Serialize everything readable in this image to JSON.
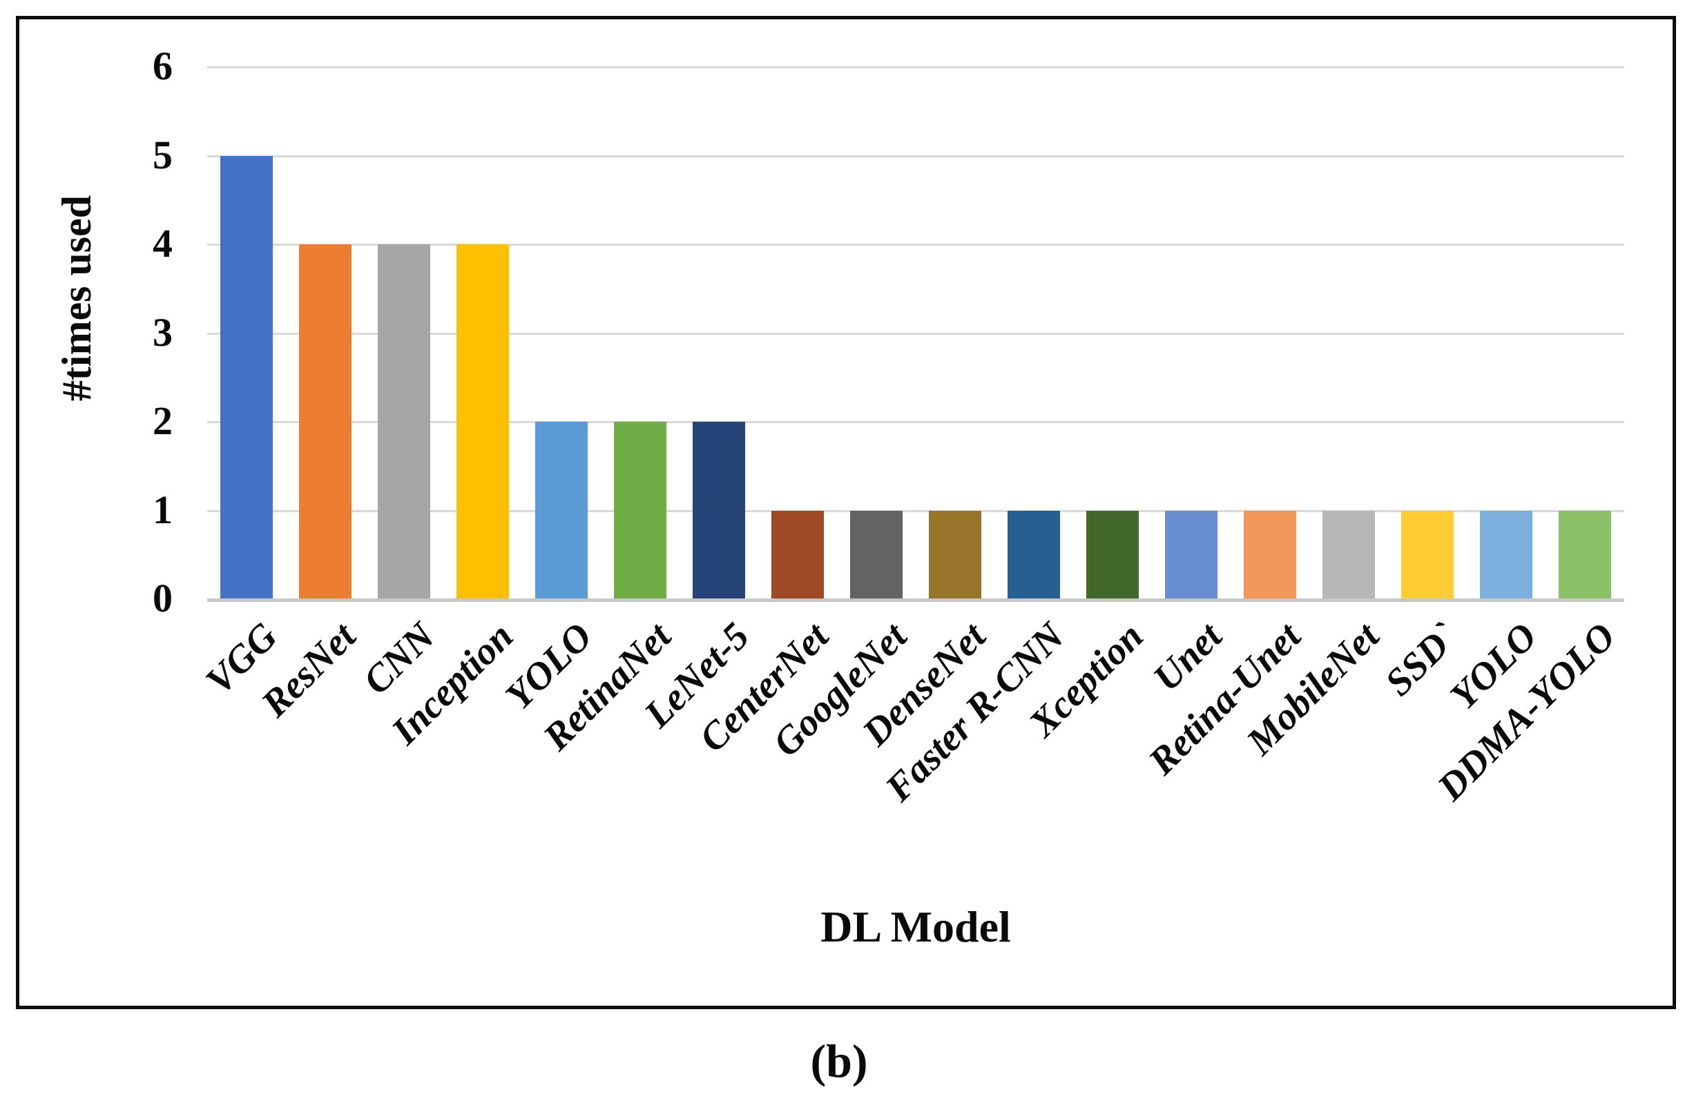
{
  "figure": {
    "caption": "(b)"
  },
  "chart_data": {
    "type": "bar",
    "title": "",
    "xlabel": "DL Model",
    "ylabel": "#times used",
    "ylim": [
      0,
      6
    ],
    "yticks": [
      0,
      1,
      2,
      3,
      4,
      5,
      6
    ],
    "grid": true,
    "legend": "none",
    "categories": [
      "VGG",
      "ResNet",
      "CNN",
      "Inception",
      "YOLO",
      "RetinaNet",
      "LeNet-5",
      "CenterNet",
      "GoogleNet",
      "DenseNet",
      "Faster R-CNN",
      "Xception",
      "Unet",
      "Retina-Unet",
      "MobileNet",
      "SSD`",
      "YOLO",
      "DDMA-YOLO"
    ],
    "values": [
      5,
      4,
      4,
      4,
      2,
      2,
      2,
      1,
      1,
      1,
      1,
      1,
      1,
      1,
      1,
      1,
      1,
      1
    ],
    "bar_colors": [
      "#4472C4",
      "#ED7D31",
      "#A5A5A5",
      "#FFC000",
      "#5B9BD5",
      "#70AD47",
      "#264478",
      "#9E4A26",
      "#636363",
      "#97742A",
      "#255E91",
      "#43682B",
      "#698ED0",
      "#F1975A",
      "#B7B7B7",
      "#FFCD33",
      "#7CAFDD",
      "#8CC168"
    ],
    "gridline_color": "#d9d9d9",
    "axis_line_color": "#c8c8c8"
  }
}
